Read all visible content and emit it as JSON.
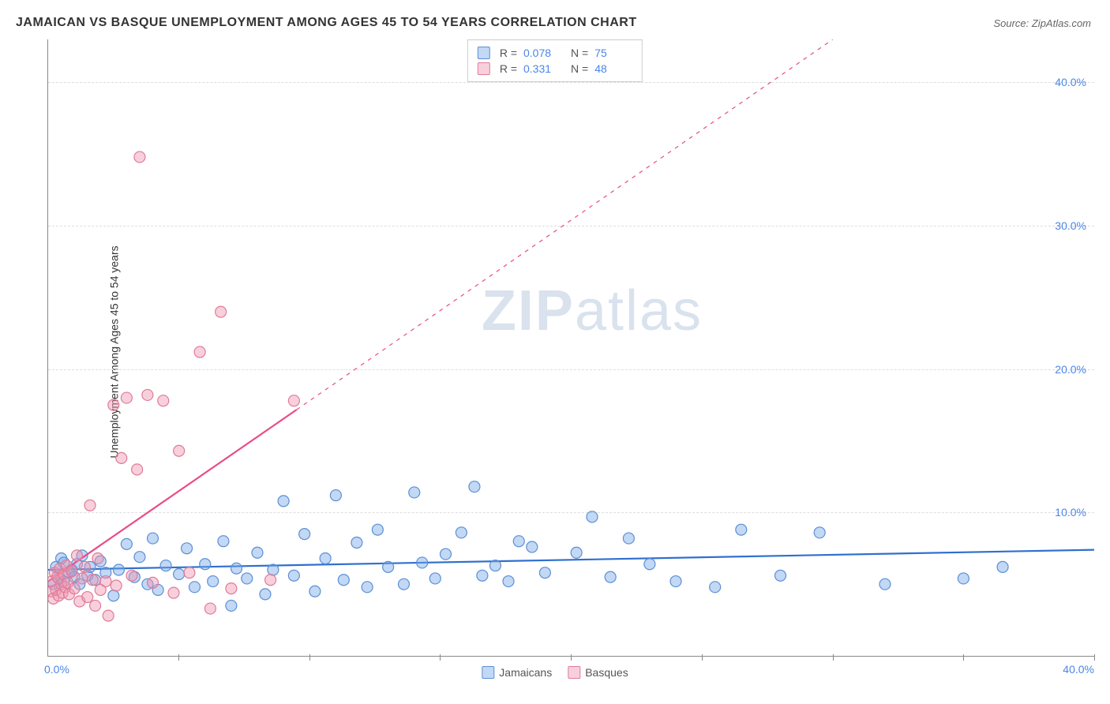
{
  "title": "JAMAICAN VS BASQUE UNEMPLOYMENT AMONG AGES 45 TO 54 YEARS CORRELATION CHART",
  "source_label": "Source: ZipAtlas.com",
  "watermark": {
    "bold": "ZIP",
    "light": "atlas"
  },
  "y_axis_label": "Unemployment Among Ages 45 to 54 years",
  "chart": {
    "type": "scatter",
    "xlim": [
      0,
      40
    ],
    "ylim": [
      0,
      43
    ],
    "x_ticks_labeled": [
      "0.0%",
      "40.0%"
    ],
    "x_tick_positions": [
      0,
      5,
      10,
      15,
      20,
      25,
      30,
      35,
      40
    ],
    "y_ticks": [
      {
        "value": 10,
        "label": "10.0%"
      },
      {
        "value": 20,
        "label": "20.0%"
      },
      {
        "value": 30,
        "label": "30.0%"
      },
      {
        "value": 40,
        "label": "40.0%"
      }
    ],
    "grid_color": "#dddddd",
    "background_color": "#ffffff",
    "marker_radius": 7,
    "marker_stroke_width": 1.2,
    "line_width": 2.2,
    "series": [
      {
        "name": "Jamaicans",
        "color_fill": "rgba(120,168,230,0.45)",
        "color_stroke": "#5b8fd6",
        "regression": {
          "x1": 0,
          "y1": 6.0,
          "x2": 40,
          "y2": 7.4,
          "dashed_after_x": null,
          "line_color": "#2f6fd0"
        },
        "r": "0.078",
        "n": "75",
        "points": [
          [
            0.2,
            5.0
          ],
          [
            0.3,
            6.2
          ],
          [
            0.4,
            5.4
          ],
          [
            0.5,
            6.8
          ],
          [
            0.6,
            5.2
          ],
          [
            0.6,
            6.5
          ],
          [
            0.8,
            5.8
          ],
          [
            0.9,
            6.0
          ],
          [
            1.0,
            5.5
          ],
          [
            1.1,
            6.4
          ],
          [
            1.2,
            5.0
          ],
          [
            1.3,
            7.0
          ],
          [
            1.5,
            5.6
          ],
          [
            1.6,
            6.2
          ],
          [
            1.8,
            5.3
          ],
          [
            2.0,
            6.6
          ],
          [
            2.2,
            5.8
          ],
          [
            2.5,
            4.2
          ],
          [
            2.7,
            6.0
          ],
          [
            3.0,
            7.8
          ],
          [
            3.3,
            5.5
          ],
          [
            3.5,
            6.9
          ],
          [
            3.8,
            5.0
          ],
          [
            4.0,
            8.2
          ],
          [
            4.2,
            4.6
          ],
          [
            4.5,
            6.3
          ],
          [
            5.0,
            5.7
          ],
          [
            5.3,
            7.5
          ],
          [
            5.6,
            4.8
          ],
          [
            6.0,
            6.4
          ],
          [
            6.3,
            5.2
          ],
          [
            6.7,
            8.0
          ],
          [
            7.0,
            3.5
          ],
          [
            7.2,
            6.1
          ],
          [
            7.6,
            5.4
          ],
          [
            8.0,
            7.2
          ],
          [
            8.3,
            4.3
          ],
          [
            8.6,
            6.0
          ],
          [
            9.0,
            10.8
          ],
          [
            9.4,
            5.6
          ],
          [
            9.8,
            8.5
          ],
          [
            10.2,
            4.5
          ],
          [
            10.6,
            6.8
          ],
          [
            11.0,
            11.2
          ],
          [
            11.3,
            5.3
          ],
          [
            11.8,
            7.9
          ],
          [
            12.2,
            4.8
          ],
          [
            12.6,
            8.8
          ],
          [
            13.0,
            6.2
          ],
          [
            13.6,
            5.0
          ],
          [
            14.0,
            11.4
          ],
          [
            14.3,
            6.5
          ],
          [
            14.8,
            5.4
          ],
          [
            15.2,
            7.1
          ],
          [
            15.8,
            8.6
          ],
          [
            16.3,
            11.8
          ],
          [
            16.6,
            5.6
          ],
          [
            17.1,
            6.3
          ],
          [
            17.6,
            5.2
          ],
          [
            18.0,
            8.0
          ],
          [
            18.5,
            7.6
          ],
          [
            19.0,
            5.8
          ],
          [
            20.2,
            7.2
          ],
          [
            20.8,
            9.7
          ],
          [
            21.5,
            5.5
          ],
          [
            22.2,
            8.2
          ],
          [
            23.0,
            6.4
          ],
          [
            24.0,
            5.2
          ],
          [
            25.5,
            4.8
          ],
          [
            26.5,
            8.8
          ],
          [
            28.0,
            5.6
          ],
          [
            29.5,
            8.6
          ],
          [
            32.0,
            5.0
          ],
          [
            35.0,
            5.4
          ],
          [
            36.5,
            6.2
          ]
        ]
      },
      {
        "name": "Basques",
        "color_fill": "rgba(240,150,175,0.45)",
        "color_stroke": "#e07a9a",
        "regression": {
          "x1": 0,
          "y1": 5.2,
          "x2": 30,
          "y2": 43,
          "dashed_after_x": 9.5,
          "line_color": "#e84b87"
        },
        "r": "0.331",
        "n": "48",
        "points": [
          [
            0.1,
            4.5
          ],
          [
            0.15,
            5.2
          ],
          [
            0.2,
            4.0
          ],
          [
            0.25,
            5.8
          ],
          [
            0.3,
            4.6
          ],
          [
            0.35,
            5.5
          ],
          [
            0.4,
            4.2
          ],
          [
            0.45,
            6.1
          ],
          [
            0.5,
            5.0
          ],
          [
            0.55,
            4.4
          ],
          [
            0.6,
            5.7
          ],
          [
            0.65,
            4.8
          ],
          [
            0.7,
            6.3
          ],
          [
            0.75,
            5.1
          ],
          [
            0.8,
            4.3
          ],
          [
            0.9,
            5.9
          ],
          [
            1.0,
            4.7
          ],
          [
            1.1,
            7.0
          ],
          [
            1.2,
            3.8
          ],
          [
            1.3,
            5.4
          ],
          [
            1.4,
            6.2
          ],
          [
            1.5,
            4.1
          ],
          [
            1.6,
            10.5
          ],
          [
            1.7,
            5.3
          ],
          [
            1.8,
            3.5
          ],
          [
            1.9,
            6.8
          ],
          [
            2.0,
            4.6
          ],
          [
            2.2,
            5.2
          ],
          [
            2.3,
            2.8
          ],
          [
            2.5,
            17.5
          ],
          [
            2.6,
            4.9
          ],
          [
            2.8,
            13.8
          ],
          [
            3.0,
            18.0
          ],
          [
            3.2,
            5.6
          ],
          [
            3.4,
            13.0
          ],
          [
            3.5,
            34.8
          ],
          [
            3.8,
            18.2
          ],
          [
            4.0,
            5.1
          ],
          [
            4.4,
            17.8
          ],
          [
            4.8,
            4.4
          ],
          [
            5.0,
            14.3
          ],
          [
            5.4,
            5.8
          ],
          [
            5.8,
            21.2
          ],
          [
            6.2,
            3.3
          ],
          [
            6.6,
            24.0
          ],
          [
            7.0,
            4.7
          ],
          [
            8.5,
            5.3
          ],
          [
            9.4,
            17.8
          ]
        ]
      }
    ]
  },
  "legend_top": {
    "rows": [
      {
        "swatch_fill": "rgba(120,168,230,0.45)",
        "swatch_stroke": "#5b8fd6",
        "r_label": "R =",
        "r_val": "0.078",
        "n_label": "N =",
        "n_val": "75"
      },
      {
        "swatch_fill": "rgba(240,150,175,0.45)",
        "swatch_stroke": "#e07a9a",
        "r_label": "R =",
        "r_val": "0.331",
        "n_label": "N =",
        "n_val": "48"
      }
    ]
  },
  "legend_bottom": {
    "items": [
      {
        "swatch_fill": "rgba(120,168,230,0.45)",
        "swatch_stroke": "#5b8fd6",
        "label": "Jamaicans"
      },
      {
        "swatch_fill": "rgba(240,150,175,0.45)",
        "swatch_stroke": "#e07a9a",
        "label": "Basques"
      }
    ]
  }
}
